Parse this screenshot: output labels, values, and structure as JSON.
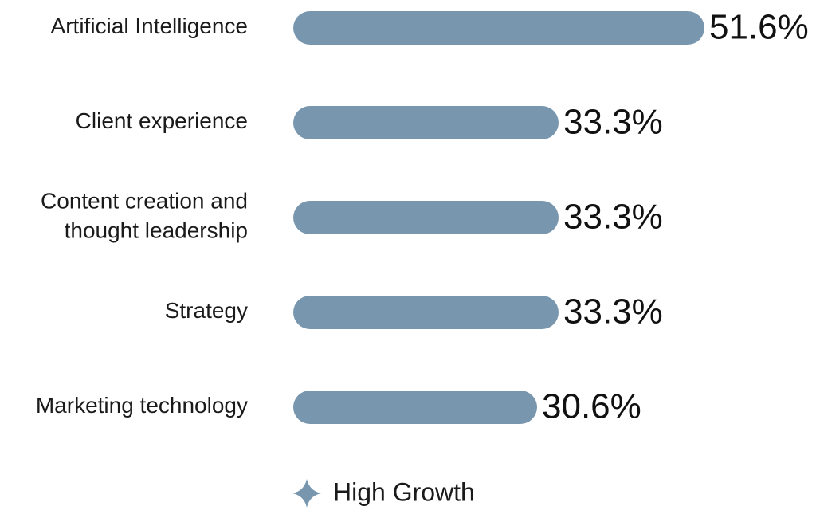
{
  "chart_data": {
    "type": "bar",
    "orientation": "horizontal",
    "categories": [
      "Artificial Intelligence",
      "Client experience",
      "Content creation and thought leadership",
      "Strategy",
      "Marketing technology"
    ],
    "category_lines": [
      [
        "Artificial Intelligence"
      ],
      [
        "Client experience"
      ],
      [
        "Content creation and",
        "thought leadership"
      ],
      [
        "Strategy"
      ],
      [
        "Marketing technology"
      ]
    ],
    "series": [
      {
        "name": "High Growth",
        "values": [
          51.6,
          33.3,
          33.3,
          33.3,
          30.6
        ],
        "value_labels": [
          "51.6%",
          "33.3%",
          "33.3%",
          "33.3%",
          "30.6%"
        ],
        "color": "#7896ae"
      }
    ],
    "title": "",
    "xlabel": "",
    "ylabel": "",
    "grid": false,
    "legend": {
      "position": "bottom-center",
      "marker": "four-point-star-icon",
      "label": "High Growth"
    }
  }
}
